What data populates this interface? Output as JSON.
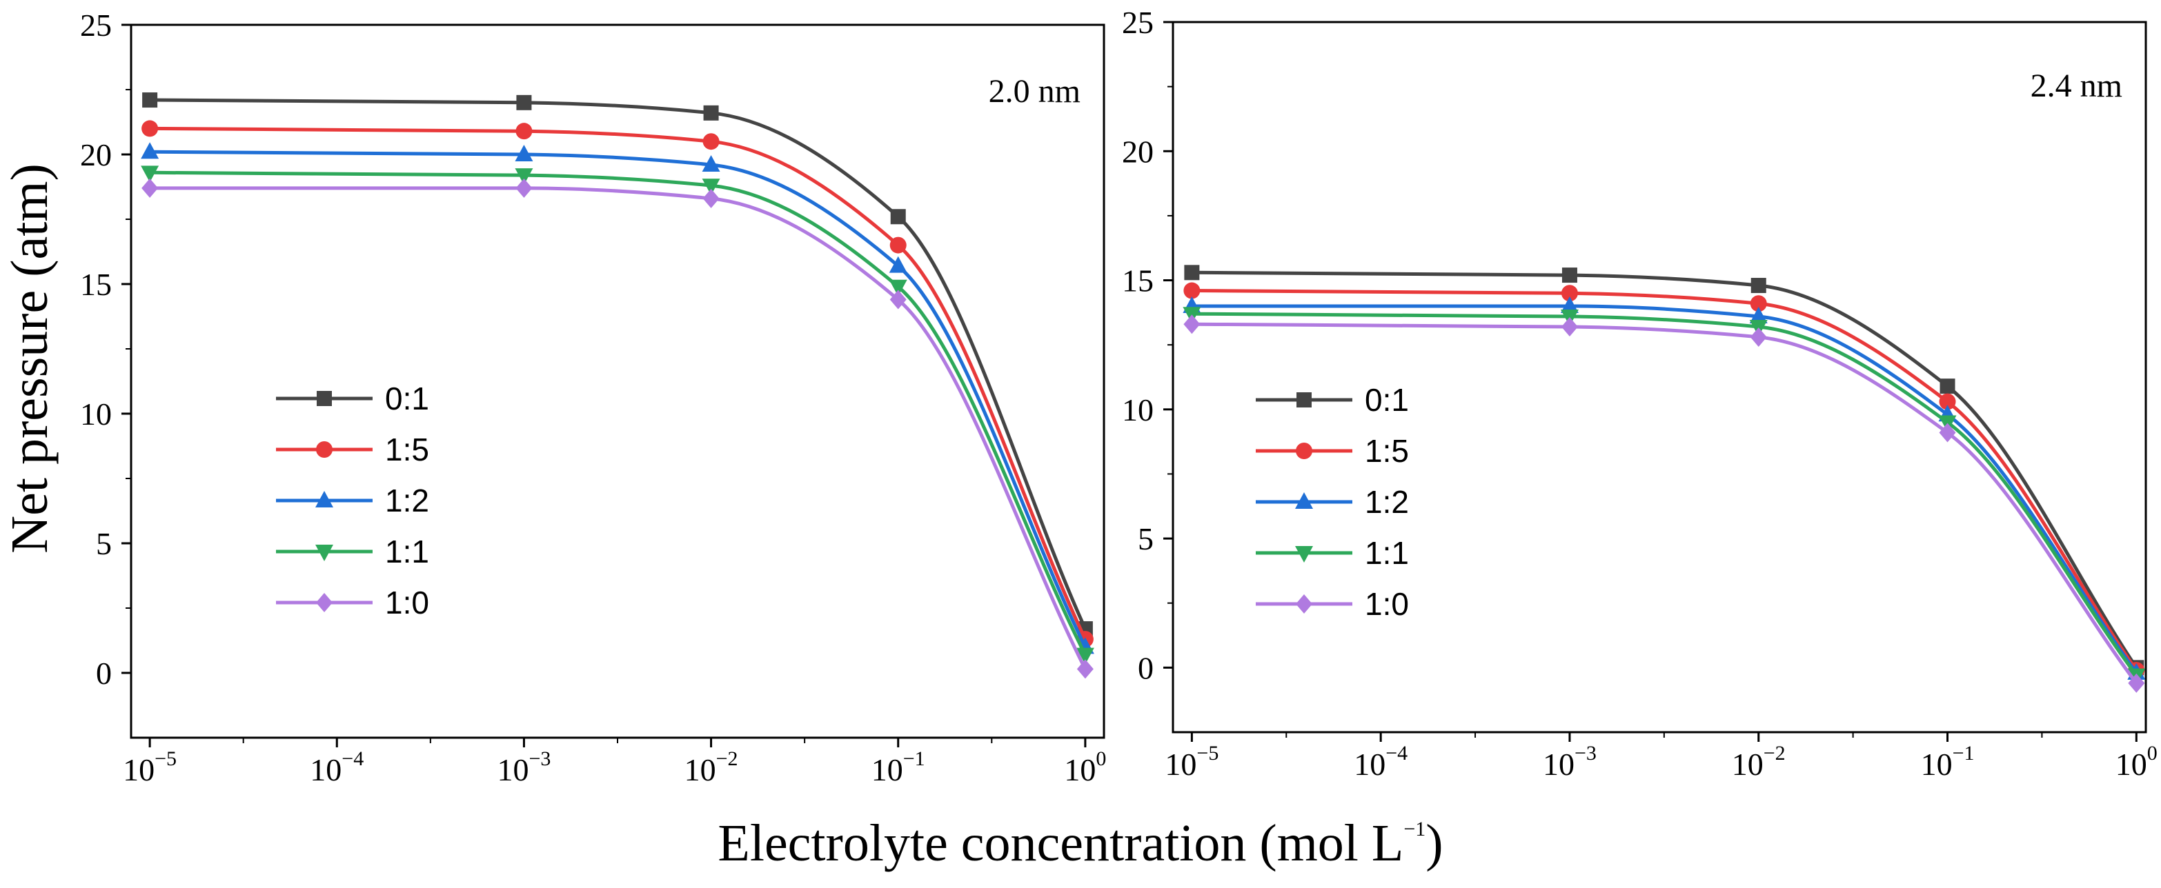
{
  "figure": {
    "xlabel": "Electrolyte concentration (mol L",
    "xlabel_exp": "−1",
    "xlabel_end": ")",
    "ylabel": "Net pressure (atm)"
  },
  "chart_data": [
    {
      "type": "line",
      "panel_label": "2.0 nm",
      "xscale": "log",
      "x": [
        1e-05,
        0.001,
        0.01,
        0.1,
        1
      ],
      "xlim_exp": [
        -5.1,
        0.1
      ],
      "xticks": [
        {
          "base": "10",
          "exp": "−5",
          "value": 1e-05
        },
        {
          "base": "10",
          "exp": "−4",
          "value": 0.0001
        },
        {
          "base": "10",
          "exp": "−3",
          "value": 0.001
        },
        {
          "base": "10",
          "exp": "−2",
          "value": 0.01
        },
        {
          "base": "10",
          "exp": "−1",
          "value": 0.1
        },
        {
          "base": "10",
          "exp": "0",
          "value": 1
        }
      ],
      "ylim": [
        -2.5,
        25
      ],
      "yticks": [
        "0",
        "5",
        "10",
        "15",
        "20",
        "25"
      ],
      "legend_position": "center-left",
      "series": [
        {
          "name": "0:1",
          "color": "#444444",
          "marker": "square",
          "values": [
            22.1,
            22.0,
            21.6,
            17.6,
            1.7
          ]
        },
        {
          "name": "1:5",
          "color": "#e8393a",
          "marker": "circle",
          "values": [
            21.0,
            20.9,
            20.5,
            16.5,
            1.3
          ]
        },
        {
          "name": "1:2",
          "color": "#1f6fd6",
          "marker": "triangle-up",
          "values": [
            20.1,
            20.0,
            19.6,
            15.7,
            1.0
          ]
        },
        {
          "name": "1:1",
          "color": "#2ea85a",
          "marker": "triangle-down",
          "values": [
            19.3,
            19.2,
            18.8,
            14.9,
            0.7
          ]
        },
        {
          "name": "1:0",
          "color": "#b07ae0",
          "marker": "diamond",
          "values": [
            18.7,
            18.7,
            18.3,
            14.4,
            0.15
          ]
        }
      ]
    },
    {
      "type": "line",
      "panel_label": "2.4 nm",
      "xscale": "log",
      "x": [
        1e-05,
        0.001,
        0.01,
        0.1,
        1
      ],
      "xlim_exp": [
        -5.1,
        0.05
      ],
      "xticks": [
        {
          "base": "10",
          "exp": "−5",
          "value": 1e-05
        },
        {
          "base": "10",
          "exp": "−4",
          "value": 0.0001
        },
        {
          "base": "10",
          "exp": "−3",
          "value": 0.001
        },
        {
          "base": "10",
          "exp": "−2",
          "value": 0.01
        },
        {
          "base": "10",
          "exp": "−1",
          "value": 0.1
        },
        {
          "base": "10",
          "exp": "0",
          "value": 1
        }
      ],
      "ylim": [
        -2.5,
        25
      ],
      "yticks": [
        "0",
        "5",
        "10",
        "15",
        "20",
        "25"
      ],
      "legend_position": "center-left",
      "series": [
        {
          "name": "0:1",
          "color": "#444444",
          "marker": "square",
          "values": [
            15.3,
            15.2,
            14.8,
            10.9,
            0.0
          ]
        },
        {
          "name": "1:5",
          "color": "#e8393a",
          "marker": "circle",
          "values": [
            14.6,
            14.5,
            14.1,
            10.3,
            -0.1
          ]
        },
        {
          "name": "1:2",
          "color": "#1f6fd6",
          "marker": "triangle-up",
          "values": [
            14.0,
            14.0,
            13.6,
            9.8,
            -0.2
          ]
        },
        {
          "name": "1:1",
          "color": "#2ea85a",
          "marker": "triangle-down",
          "values": [
            13.7,
            13.6,
            13.2,
            9.5,
            -0.3
          ]
        },
        {
          "name": "1:0",
          "color": "#b07ae0",
          "marker": "diamond",
          "values": [
            13.3,
            13.2,
            12.8,
            9.1,
            -0.6
          ]
        }
      ]
    }
  ]
}
